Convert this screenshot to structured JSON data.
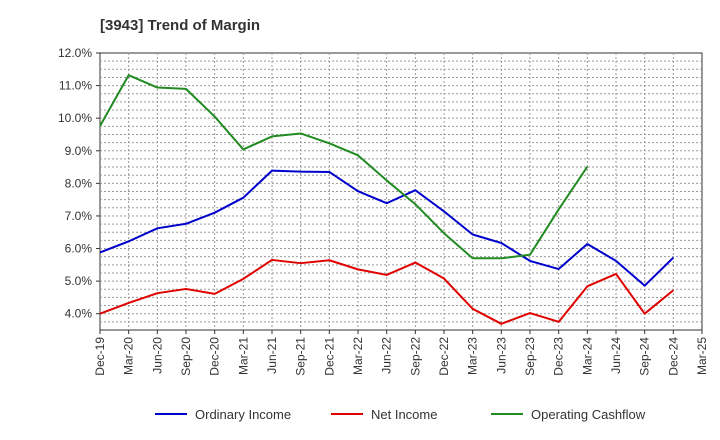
{
  "chart_data": {
    "type": "line",
    "title": "[3943]  Trend of Margin",
    "x": [
      "Dec-19",
      "Mar-20",
      "Jun-20",
      "Sep-20",
      "Dec-20",
      "Mar-21",
      "Jun-21",
      "Sep-21",
      "Dec-21",
      "Mar-22",
      "Jun-22",
      "Sep-22",
      "Dec-22",
      "Mar-23",
      "Jun-23",
      "Sep-23",
      "Dec-23",
      "Mar-24",
      "Jun-24",
      "Sep-24",
      "Dec-24",
      "Mar-25"
    ],
    "ylim": [
      3.5,
      12.0
    ],
    "yticks": [
      4.0,
      5.0,
      6.0,
      7.0,
      8.0,
      9.0,
      10.0,
      11.0,
      12.0
    ],
    "ytick_labels": [
      "4.0%",
      "5.0%",
      "6.0%",
      "7.0%",
      "8.0%",
      "9.0%",
      "10.0%",
      "11.0%",
      "12.0%"
    ],
    "grid": true,
    "legend_position": "bottom",
    "series": [
      {
        "name": "Ordinary Income",
        "color": "#0000cc",
        "values": [
          5.88,
          6.22,
          6.62,
          6.76,
          7.1,
          7.56,
          8.39,
          8.36,
          8.35,
          7.76,
          7.39,
          7.79,
          7.14,
          6.43,
          6.17,
          5.62,
          5.37,
          6.14,
          5.62,
          4.86,
          5.72,
          null
        ]
      },
      {
        "name": "Net Income",
        "color": "#e00000",
        "values": [
          4.0,
          4.33,
          4.63,
          4.76,
          4.61,
          5.07,
          5.65,
          5.55,
          5.64,
          5.36,
          5.19,
          5.57,
          5.08,
          4.15,
          3.69,
          4.02,
          3.75,
          4.84,
          5.22,
          4.0,
          4.72,
          null
        ]
      },
      {
        "name": "Operating Cashflow",
        "color": "#228b22",
        "values": [
          9.76,
          11.32,
          10.94,
          10.9,
          10.05,
          9.04,
          9.44,
          9.53,
          9.23,
          8.86,
          8.09,
          7.36,
          6.47,
          5.7,
          5.7,
          5.81,
          7.2,
          8.51,
          null,
          null,
          null,
          null
        ]
      }
    ]
  }
}
